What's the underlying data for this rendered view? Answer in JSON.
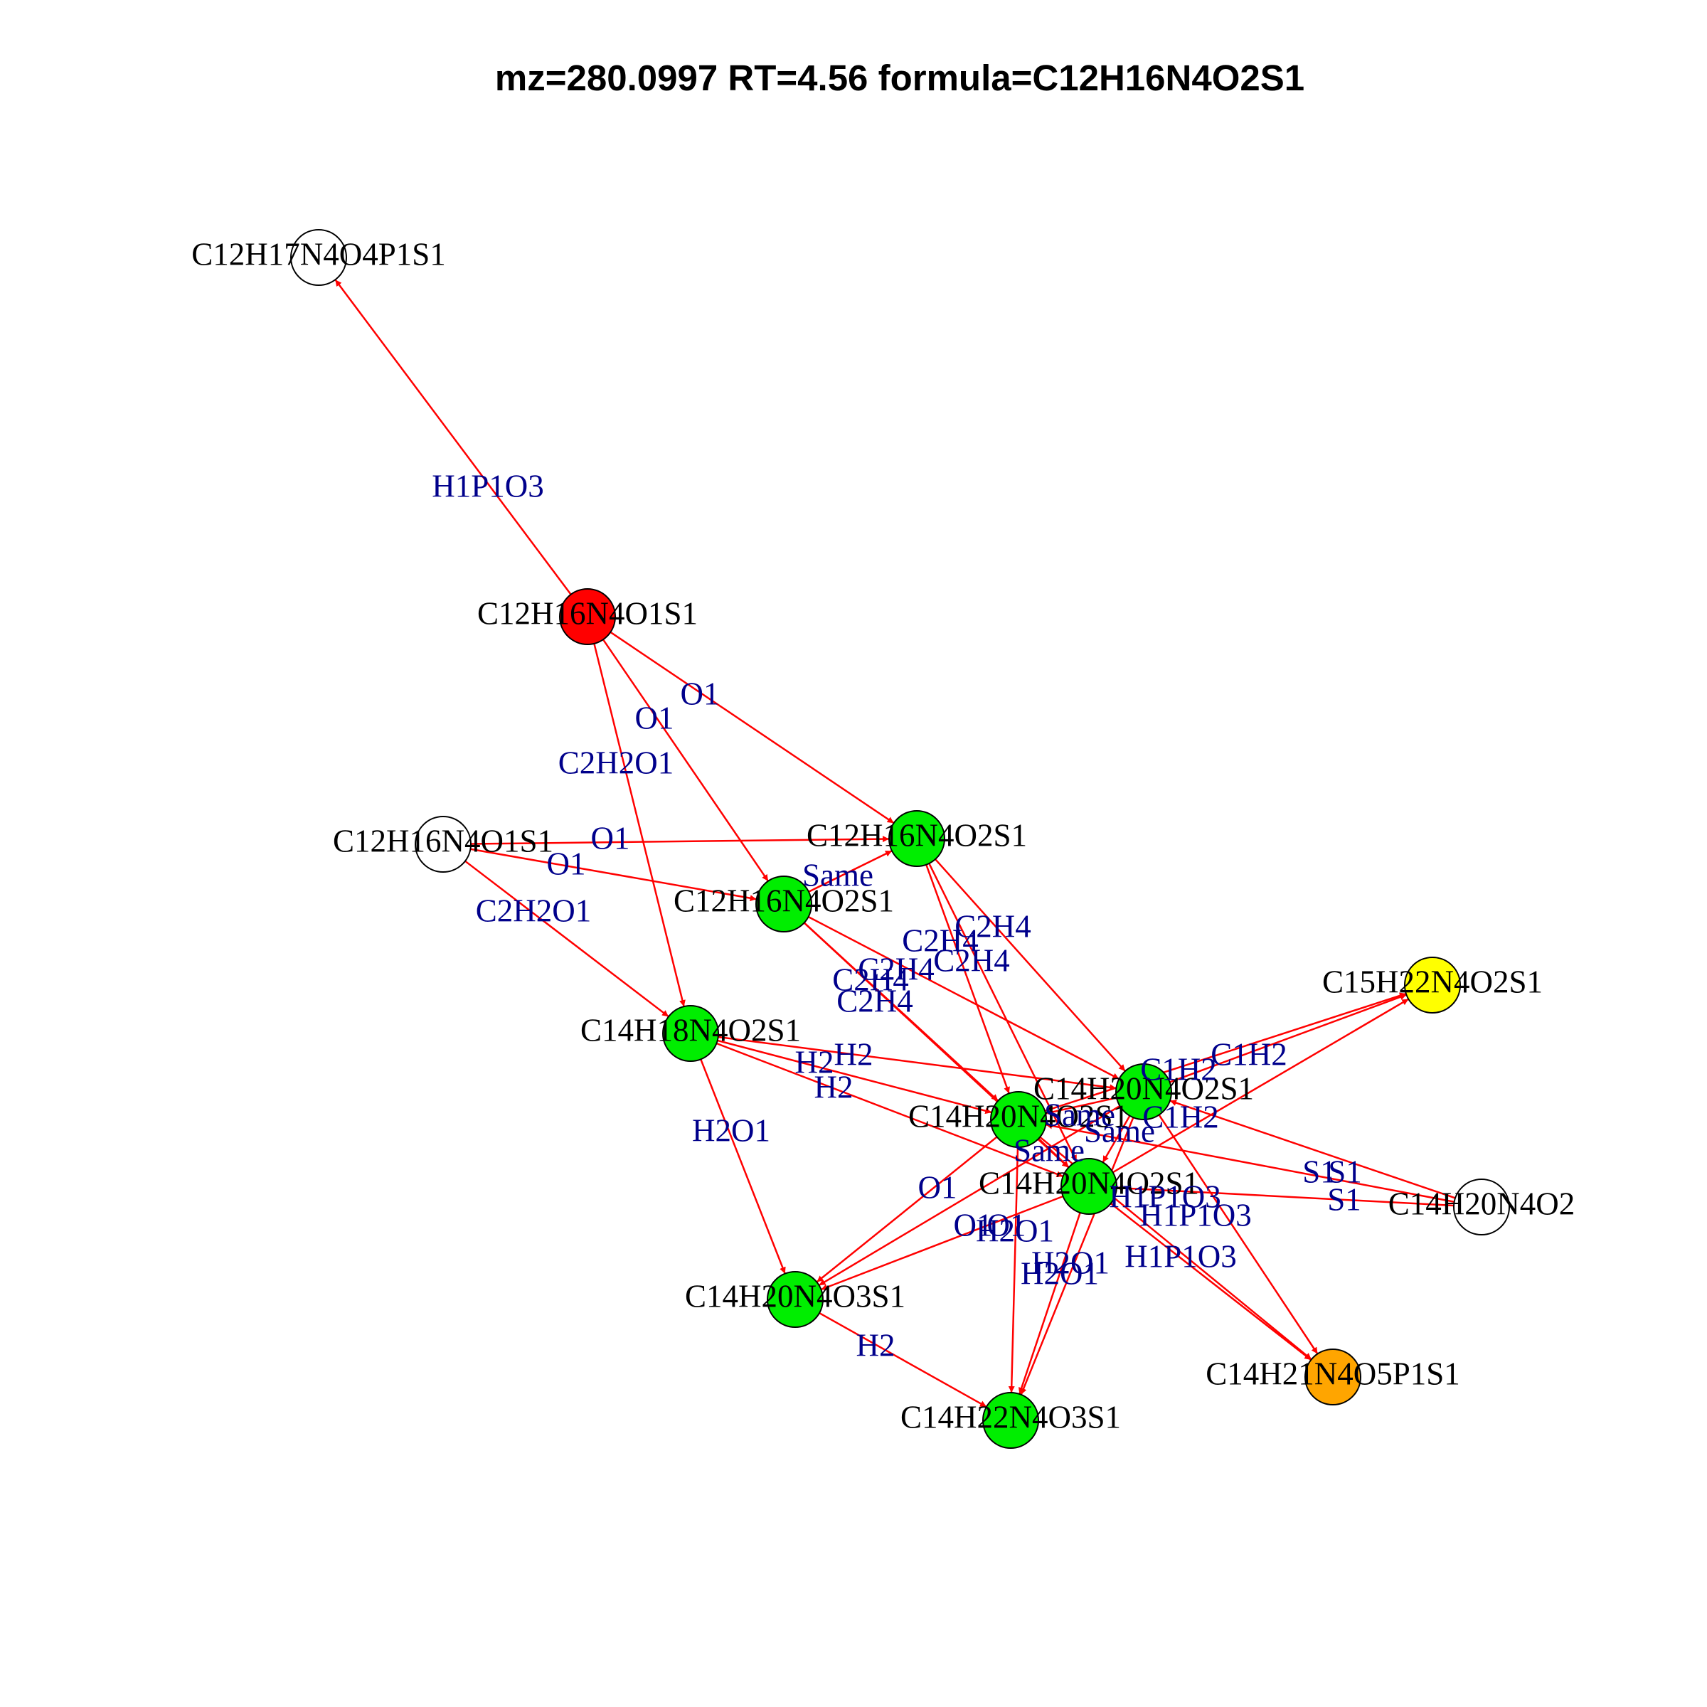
{
  "title": "mz=280.0997 RT=4.56 formula=C12H16N4O2S1",
  "colors": {
    "edge": "#ff0000",
    "edge_label": "#00008b",
    "red": "#ff0000",
    "green": "#00ee00",
    "yellow": "#ffff00",
    "orange": "#ffa500",
    "white": "#ffffff"
  },
  "nodes": [
    {
      "id": "n_pup",
      "label": "C12H17N4O4P1S1",
      "fill": "white"
    },
    {
      "id": "n_red",
      "label": "C12H16N4O1S1",
      "fill": "red"
    },
    {
      "id": "n_wl",
      "label": "C12H16N4O1S1",
      "fill": "white"
    },
    {
      "id": "n_g1",
      "label": "C12H16N4O2S1",
      "fill": "green"
    },
    {
      "id": "n_g2",
      "label": "C12H16N4O2S1",
      "fill": "green"
    },
    {
      "id": "n_g3",
      "label": "C14H18N4O2S1",
      "fill": "green"
    },
    {
      "id": "n_g4",
      "label": "C14H20N4O2S1",
      "fill": "green"
    },
    {
      "id": "n_g5",
      "label": "C14H20N4O2S1",
      "fill": "green"
    },
    {
      "id": "n_g6",
      "label": "C14H20N4O2S1",
      "fill": "green"
    },
    {
      "id": "n_yel",
      "label": "C15H22N4O2S1",
      "fill": "yellow"
    },
    {
      "id": "n_wr",
      "label": "C14H20N4O2",
      "fill": "white"
    },
    {
      "id": "n_g7",
      "label": "C14H20N4O3S1",
      "fill": "green"
    },
    {
      "id": "n_g8",
      "label": "C14H22N4O3S1",
      "fill": "green"
    },
    {
      "id": "n_ora",
      "label": "C14H21N4O5P1S1",
      "fill": "orange"
    }
  ],
  "edges": [
    {
      "from": "n_red",
      "to": "n_pup",
      "label": "H1P1O3"
    },
    {
      "from": "n_red",
      "to": "n_g1",
      "label": "O1"
    },
    {
      "from": "n_red",
      "to": "n_g2",
      "label": "O1"
    },
    {
      "from": "n_red",
      "to": "n_g3",
      "label": "C2H2O1"
    },
    {
      "from": "n_wl",
      "to": "n_g1",
      "label": "O1"
    },
    {
      "from": "n_wl",
      "to": "n_g2",
      "label": "O1"
    },
    {
      "from": "n_wl",
      "to": "n_g3",
      "label": "C2H2O1"
    },
    {
      "from": "n_g2",
      "to": "n_g1",
      "label": "Same"
    },
    {
      "from": "n_g1",
      "to": "n_g4",
      "label": "C2H4"
    },
    {
      "from": "n_g1",
      "to": "n_g5",
      "label": "C2H4"
    },
    {
      "from": "n_g1",
      "to": "n_g6",
      "label": "C2H4"
    },
    {
      "from": "n_g2",
      "to": "n_g4",
      "label": "C2H4"
    },
    {
      "from": "n_g2",
      "to": "n_g5",
      "label": "C2H4"
    },
    {
      "from": "n_g2",
      "to": "n_g6",
      "label": "C2H4"
    },
    {
      "from": "n_g3",
      "to": "n_g4",
      "label": "H2"
    },
    {
      "from": "n_g3",
      "to": "n_g5",
      "label": "H2"
    },
    {
      "from": "n_g3",
      "to": "n_g6",
      "label": "H2"
    },
    {
      "from": "n_g3",
      "to": "n_g7",
      "label": "H2O1"
    },
    {
      "from": "n_g4",
      "to": "n_g5",
      "label": "Same"
    },
    {
      "from": "n_g5",
      "to": "n_g6",
      "label": "Same"
    },
    {
      "from": "n_g4",
      "to": "n_g6",
      "label": "Same"
    },
    {
      "from": "n_g4",
      "to": "n_yel",
      "label": "C1H2"
    },
    {
      "from": "n_g5",
      "to": "n_yel",
      "label": "C1H2"
    },
    {
      "from": "n_g6",
      "to": "n_yel",
      "label": "C1H2"
    },
    {
      "from": "n_wr",
      "to": "n_g4",
      "label": "S1"
    },
    {
      "from": "n_wr",
      "to": "n_g5",
      "label": "S1"
    },
    {
      "from": "n_wr",
      "to": "n_g6",
      "label": "S1"
    },
    {
      "from": "n_g4",
      "to": "n_g7",
      "label": "O1"
    },
    {
      "from": "n_g5",
      "to": "n_g7",
      "label": "O1"
    },
    {
      "from": "n_g6",
      "to": "n_g7",
      "label": "O1"
    },
    {
      "from": "n_g4",
      "to": "n_g8",
      "label": "H2O1"
    },
    {
      "from": "n_g5",
      "to": "n_g8",
      "label": "H2O1"
    },
    {
      "from": "n_g6",
      "to": "n_g8",
      "label": "H2O1"
    },
    {
      "from": "n_g4",
      "to": "n_ora",
      "label": "H1P1O3"
    },
    {
      "from": "n_g5",
      "to": "n_ora",
      "label": "H1P1O3"
    },
    {
      "from": "n_g6",
      "to": "n_ora",
      "label": "H1P1O3"
    },
    {
      "from": "n_g7",
      "to": "n_g8",
      "label": "H2"
    }
  ]
}
